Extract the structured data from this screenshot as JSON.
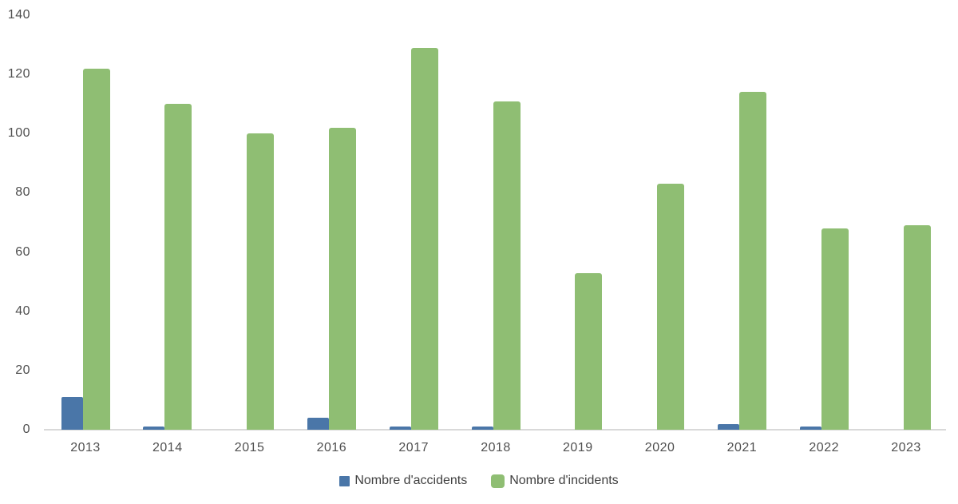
{
  "chart": {
    "background_color": "#ffffff",
    "axis_line_color": "#d9d9d9",
    "tick_label_color": "#4f4f4f",
    "legend_text_color": "#404040"
  },
  "chart_data": {
    "type": "bar",
    "title": "",
    "xlabel": "",
    "ylabel": "",
    "categories": [
      "2013",
      "2014",
      "2015",
      "2016",
      "2017",
      "2018",
      "2019",
      "2020",
      "2021",
      "2022",
      "2023"
    ],
    "series": [
      {
        "name": "Nombre d'accidents",
        "color": "#4A76A8",
        "values": [
          11,
          1,
          0,
          4,
          1,
          1,
          0,
          0,
          2,
          1,
          0
        ]
      },
      {
        "name": "Nombre d'incidents",
        "color": "#8FBE73",
        "values": [
          122,
          110,
          100,
          102,
          129,
          111,
          53,
          83,
          114,
          68,
          69
        ]
      }
    ],
    "ylim": [
      0,
      140
    ],
    "yticks": [
      0,
      20,
      40,
      60,
      80,
      100,
      120,
      140
    ],
    "grid": false,
    "legend_position": "bottom"
  }
}
